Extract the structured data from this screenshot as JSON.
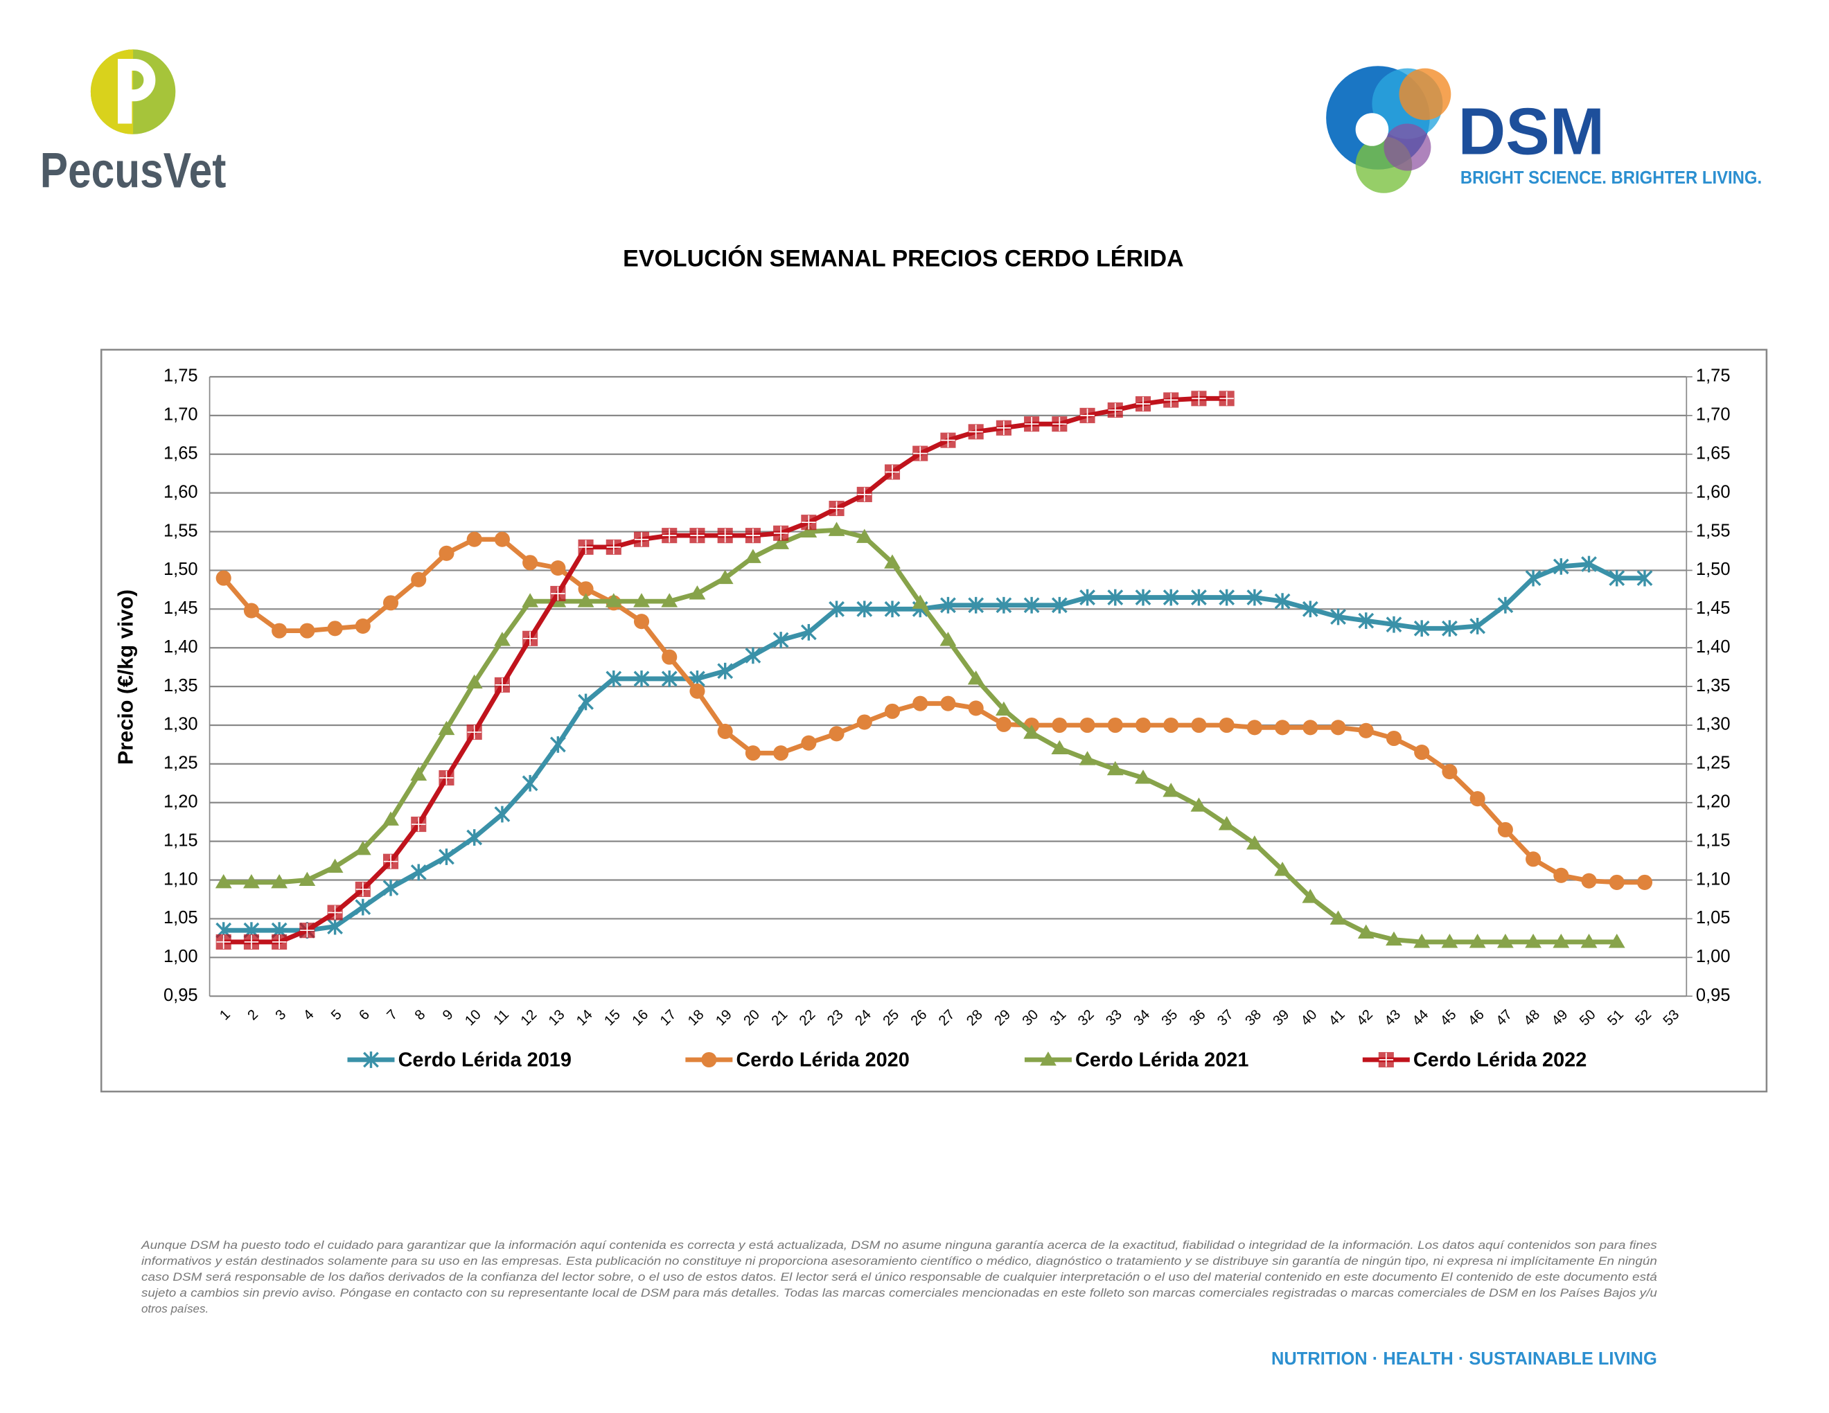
{
  "header": {
    "brand_left": "PecusVet",
    "brand_right": "DSM",
    "tagline": "BRIGHT SCIENCE. BRIGHTER LIVING."
  },
  "chart_data": {
    "type": "line",
    "title": "EVOLUCIÓN SEMANAL PRECIOS CERDO LÉRIDA",
    "ylabel": "Precio (€/kg vivo)",
    "categories": [
      "1",
      "2",
      "3",
      "4",
      "5",
      "6",
      "7",
      "8",
      "9",
      "10",
      "11",
      "12",
      "13",
      "14",
      "15",
      "16",
      "17",
      "18",
      "19",
      "20",
      "21",
      "22",
      "23",
      "24",
      "25",
      "26",
      "27",
      "28",
      "29",
      "30",
      "31",
      "32",
      "33",
      "34",
      "35",
      "36",
      "37",
      "38",
      "39",
      "40",
      "41",
      "42",
      "43",
      "44",
      "45",
      "46",
      "47",
      "48",
      "49",
      "50",
      "51",
      "52",
      "53"
    ],
    "series": [
      {
        "name": "Cerdo Lérida 2019",
        "color": "#3a91a8",
        "marker": "star",
        "values": [
          1.035,
          1.035,
          1.035,
          1.035,
          1.04,
          1.065,
          1.09,
          1.11,
          1.13,
          1.155,
          1.185,
          1.225,
          1.275,
          1.33,
          1.36,
          1.36,
          1.36,
          1.36,
          1.37,
          1.39,
          1.41,
          1.42,
          1.45,
          1.45,
          1.45,
          1.45,
          1.455,
          1.455,
          1.455,
          1.455,
          1.455,
          1.465,
          1.465,
          1.465,
          1.465,
          1.465,
          1.465,
          1.465,
          1.46,
          1.45,
          1.44,
          1.435,
          1.43,
          1.425,
          1.425,
          1.428,
          1.455,
          1.49,
          1.505,
          1.508,
          1.49,
          1.49,
          null
        ]
      },
      {
        "name": "Cerdo Lérida 2020",
        "color": "#e0833b",
        "marker": "circle",
        "values": [
          1.49,
          1.448,
          1.422,
          1.422,
          1.425,
          1.428,
          1.458,
          1.488,
          1.522,
          1.54,
          1.54,
          1.51,
          1.503,
          1.476,
          1.458,
          1.434,
          1.388,
          1.344,
          1.292,
          1.264,
          1.264,
          1.277,
          1.289,
          1.304,
          1.318,
          1.328,
          1.328,
          1.322,
          1.301,
          1.3,
          1.3,
          1.3,
          1.3,
          1.3,
          1.3,
          1.3,
          1.3,
          1.297,
          1.297,
          1.297,
          1.297,
          1.293,
          1.283,
          1.265,
          1.24,
          1.205,
          1.165,
          1.127,
          1.106,
          1.099,
          1.097,
          1.097,
          null
        ]
      },
      {
        "name": "Cerdo Lérida 2021",
        "color": "#87a34a",
        "marker": "triangle",
        "values": [
          1.097,
          1.097,
          1.097,
          1.1,
          1.117,
          1.14,
          1.178,
          1.236,
          1.295,
          1.355,
          1.41,
          1.46,
          1.46,
          1.46,
          1.46,
          1.46,
          1.46,
          1.47,
          1.49,
          1.517,
          1.535,
          1.55,
          1.552,
          1.543,
          1.51,
          1.458,
          1.41,
          1.36,
          1.32,
          1.29,
          1.27,
          1.256,
          1.243,
          1.232,
          1.215,
          1.196,
          1.172,
          1.147,
          1.113,
          1.078,
          1.05,
          1.032,
          1.023,
          1.02,
          1.02,
          1.02,
          1.02,
          1.02,
          1.02,
          1.02,
          1.02,
          null,
          null
        ]
      },
      {
        "name": "Cerdo Lérida 2022",
        "color": "#c0131c",
        "marker": "square-cross",
        "values": [
          1.02,
          1.02,
          1.02,
          1.035,
          1.058,
          1.088,
          1.124,
          1.172,
          1.232,
          1.291,
          1.352,
          1.412,
          1.47,
          1.53,
          1.53,
          1.54,
          1.545,
          1.545,
          1.545,
          1.545,
          1.548,
          1.562,
          1.58,
          1.598,
          1.627,
          1.651,
          1.668,
          1.679,
          1.684,
          1.689,
          1.689,
          1.7,
          1.707,
          1.715,
          1.72,
          1.722,
          1.722,
          null,
          null,
          null,
          null,
          null,
          null,
          null,
          null,
          null,
          null,
          null,
          null,
          null,
          null,
          null,
          null
        ]
      }
    ],
    "ylim": [
      0.95,
      1.75
    ],
    "yticks": [
      {
        "value": 0.95,
        "label": "0,95"
      },
      {
        "value": 1.0,
        "label": "1,00"
      },
      {
        "value": 1.05,
        "label": "1,05"
      },
      {
        "value": 1.1,
        "label": "1,10"
      },
      {
        "value": 1.15,
        "label": "1,15"
      },
      {
        "value": 1.2,
        "label": "1,20"
      },
      {
        "value": 1.25,
        "label": "1,25"
      },
      {
        "value": 1.3,
        "label": "1,30"
      },
      {
        "value": 1.35,
        "label": "1,35"
      },
      {
        "value": 1.4,
        "label": "1,40"
      },
      {
        "value": 1.45,
        "label": "1,45"
      },
      {
        "value": 1.5,
        "label": "1,50"
      },
      {
        "value": 1.55,
        "label": "1,55"
      },
      {
        "value": 1.6,
        "label": "1,60"
      },
      {
        "value": 1.65,
        "label": "1,65"
      },
      {
        "value": 1.7,
        "label": "1,70"
      },
      {
        "value": 1.75,
        "label": "1,75"
      }
    ],
    "y2lim": [
      0.95,
      1.75
    ],
    "y2ticks": [
      {
        "value": 0.95,
        "label": "0,95"
      },
      {
        "value": 1.0,
        "label": "1,00"
      },
      {
        "value": 1.05,
        "label": "1,05"
      },
      {
        "value": 1.1,
        "label": "1,10"
      },
      {
        "value": 1.15,
        "label": "1,15"
      },
      {
        "value": 1.2,
        "label": "1,20"
      },
      {
        "value": 1.25,
        "label": "1,25"
      },
      {
        "value": 1.3,
        "label": "1,30"
      },
      {
        "value": 1.35,
        "label": "1,35"
      },
      {
        "value": 1.4,
        "label": "1,40"
      },
      {
        "value": 1.45,
        "label": "1,45"
      },
      {
        "value": 1.5,
        "label": "1,50"
      },
      {
        "value": 1.55,
        "label": "1,55"
      },
      {
        "value": 1.6,
        "label": "1,60"
      },
      {
        "value": 1.65,
        "label": "1,65"
      },
      {
        "value": 1.7,
        "label": "1,70"
      },
      {
        "value": 1.75,
        "label": "1,75"
      }
    ],
    "grid": true,
    "legend": "bottom"
  },
  "footer": {
    "disclaimer": [
      "Aunque DSM ha puesto todo el cuidado para garantizar que la información aquí contenida es correcta y está actualizada, DSM no asume ninguna garantía acerca de la exactitud, fiabilidad o integridad de la información. Los datos aquí contenidos son para fines",
      "informativos y están destinados solamente para su uso en las empresas. Esta publicación no constituye ni proporciona asesoramiento científico o médico, diagnóstico o tratamiento y se distribuye sin garantía de ningún tipo, ni expresa ni implícitamente En ningún",
      "caso DSM será responsable de los daños derivados de la confianza del lector sobre, o el uso de estos datos. El lector será el único responsable de cualquier interpretación o el uso del material contenido en este documento El contenido de este documento está",
      "sujeto a cambios sin previo aviso. Póngase en contacto con su representante local de DSM para más detalles. Todas las marcas comerciales mencionadas en este folleto son marcas comerciales registradas o marcas comerciales de DSM en los Países Bajos y/u",
      "otros países."
    ],
    "slogan": "NUTRITION · HEALTH · SUSTAINABLE LIVING"
  }
}
